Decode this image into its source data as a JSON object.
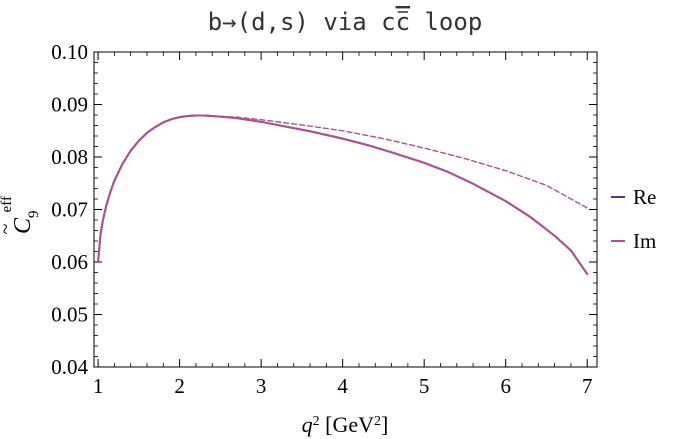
{
  "chart_data": {
    "type": "line",
    "title": "b→(d,s) via c̅c loop",
    "title_text": {
      "prefix": "b→(d,s) via c",
      "overlined": "c",
      "suffix": " loop"
    },
    "xlabel": {
      "base": "q",
      "sup": "2",
      "unit_open": " [GeV",
      "unit_sup": "2",
      "unit_close": "]"
    },
    "ylabel": {
      "base": "C",
      "accent": "~",
      "sub": "9",
      "sup": "eff"
    },
    "xlim": [
      0.95,
      7.12
    ],
    "ylim": [
      0.04,
      0.1
    ],
    "x_ticks": [
      1,
      2,
      3,
      4,
      5,
      6,
      7
    ],
    "y_ticks": [
      "0.04",
      "0.05",
      "0.06",
      "0.07",
      "0.08",
      "0.09",
      "0.10"
    ],
    "grid": false,
    "legend_position": "right",
    "series": [
      {
        "name": "Re",
        "color": "#4a3f8a",
        "style": "solid",
        "points": [
          [
            1.0,
            0.06
          ],
          [
            1.03,
            0.0653
          ],
          [
            1.06,
            0.068
          ],
          [
            1.1,
            0.0707
          ],
          [
            1.15,
            0.0733
          ],
          [
            1.2,
            0.0755
          ],
          [
            1.3,
            0.0787
          ],
          [
            1.4,
            0.0812
          ],
          [
            1.5,
            0.0831
          ],
          [
            1.6,
            0.0846
          ],
          [
            1.7,
            0.0857
          ],
          [
            1.8,
            0.0866
          ],
          [
            1.9,
            0.0872
          ],
          [
            2.0,
            0.0876
          ],
          [
            2.1,
            0.0878
          ],
          [
            2.2,
            0.0879
          ],
          [
            2.3,
            0.0879
          ],
          [
            2.5,
            0.0877
          ],
          [
            2.7,
            0.0874
          ],
          [
            3.0,
            0.0867
          ],
          [
            3.3,
            0.0858
          ],
          [
            3.6,
            0.0849
          ],
          [
            4.0,
            0.0835
          ],
          [
            4.3,
            0.0823
          ],
          [
            4.6,
            0.0809
          ],
          [
            5.0,
            0.0789
          ],
          [
            5.3,
            0.0771
          ],
          [
            5.6,
            0.0749
          ],
          [
            6.0,
            0.0716
          ],
          [
            6.3,
            0.0686
          ],
          [
            6.6,
            0.065
          ],
          [
            6.8,
            0.0622
          ],
          [
            7.0,
            0.0577
          ]
        ]
      },
      {
        "name": "Im",
        "color": "#b0508f",
        "style": "solid",
        "points": [
          [
            1.0,
            0.06
          ],
          [
            1.03,
            0.0653
          ],
          [
            1.06,
            0.068
          ],
          [
            1.1,
            0.0707
          ],
          [
            1.15,
            0.0733
          ],
          [
            1.2,
            0.0755
          ],
          [
            1.3,
            0.0787
          ],
          [
            1.4,
            0.0812
          ],
          [
            1.5,
            0.0831
          ],
          [
            1.6,
            0.0846
          ],
          [
            1.7,
            0.0857
          ],
          [
            1.8,
            0.0866
          ],
          [
            1.9,
            0.0872
          ],
          [
            2.0,
            0.0876
          ],
          [
            2.1,
            0.0878
          ],
          [
            2.2,
            0.0879
          ],
          [
            2.3,
            0.0879
          ],
          [
            2.5,
            0.0877
          ],
          [
            2.7,
            0.0874
          ],
          [
            3.0,
            0.0867
          ],
          [
            3.3,
            0.0858
          ],
          [
            3.6,
            0.0849
          ],
          [
            4.0,
            0.0835
          ],
          [
            4.3,
            0.0823
          ],
          [
            4.6,
            0.0809
          ],
          [
            5.0,
            0.0789
          ],
          [
            5.3,
            0.0771
          ],
          [
            5.6,
            0.0749
          ],
          [
            6.0,
            0.0716
          ],
          [
            6.3,
            0.0686
          ],
          [
            6.6,
            0.065
          ],
          [
            6.8,
            0.0622
          ],
          [
            7.0,
            0.0577
          ]
        ]
      },
      {
        "name": "",
        "color": "#b0508f",
        "style": "dashed",
        "points": [
          [
            2.3,
            0.0879
          ],
          [
            2.7,
            0.0876
          ],
          [
            3.0,
            0.0871
          ],
          [
            3.5,
            0.0861
          ],
          [
            4.0,
            0.085
          ],
          [
            4.5,
            0.0835
          ],
          [
            5.0,
            0.0817
          ],
          [
            5.5,
            0.0797
          ],
          [
            6.0,
            0.0774
          ],
          [
            6.5,
            0.0746
          ],
          [
            7.0,
            0.0703
          ]
        ]
      }
    ]
  }
}
